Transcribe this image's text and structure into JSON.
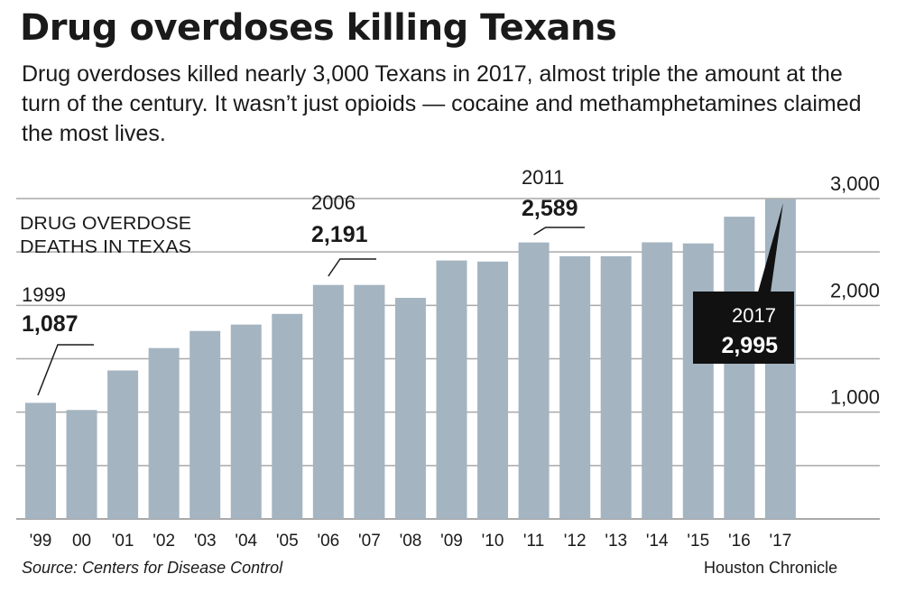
{
  "title": "Drug overdoses killing Texans",
  "subtitle": "Drug overdoses killed nearly 3,000 Texans in 2017, almost triple the amount at the turn of the century. It wasn’t just opioids — cocaine and methamphetamines claimed the most lives.",
  "source": "Source: Centers for Disease Control",
  "credit": "Houston Chronicle",
  "chart_data": {
    "type": "bar",
    "ylabel_lines": [
      "DRUG OVERDOSE",
      "DEATHS IN TEXAS"
    ],
    "categories": [
      "'99",
      "00",
      "'01",
      "'02",
      "'03",
      "'04",
      "'05",
      "'06",
      "'07",
      "'08",
      "'09",
      "'10",
      "'11",
      "'12",
      "'13",
      "'14",
      "'15",
      "'16",
      "'17"
    ],
    "values": [
      1087,
      1020,
      1390,
      1600,
      1760,
      1820,
      1920,
      2191,
      2191,
      2070,
      2420,
      2410,
      2589,
      2460,
      2460,
      2590,
      2580,
      2830,
      2995
    ],
    "ylim": [
      0,
      3000
    ],
    "yticks": [
      1000,
      2000,
      3000
    ],
    "ytick_labels": [
      "1,000",
      "2,000",
      "3,000"
    ],
    "grid": true,
    "colors": {
      "bar": "#a4b4c1",
      "grid": "#a9a9a9",
      "callout_box": "#111111"
    },
    "annotations": [
      {
        "index": 0,
        "year": "1999",
        "value": "1,087"
      },
      {
        "index": 7,
        "year": "2006",
        "value": "2,191"
      },
      {
        "index": 12,
        "year": "2011",
        "value": "2,589"
      },
      {
        "index": 18,
        "year": "2017",
        "value": "2,995"
      }
    ]
  }
}
